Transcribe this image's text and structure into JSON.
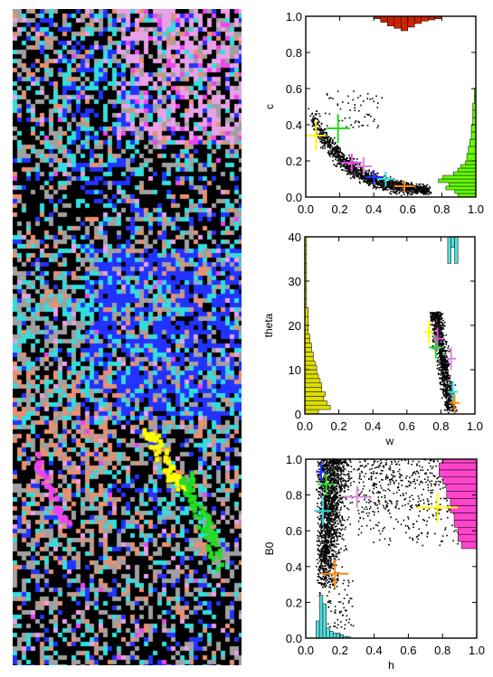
{
  "colors": {
    "cluster_yellow": "#ffff00",
    "cluster_green": "#22dd22",
    "cluster_magenta": "#ee44ee",
    "cluster_pink": "#dd88dd",
    "cluster_blue": "#2233ff",
    "cluster_cyan": "#33dddd",
    "cluster_orange": "#ff8800",
    "hist_red": "#cc2200",
    "hist_green": "#66ff00",
    "hist_yellow": "#dddd00",
    "hist_cyan": "#55dddd",
    "hist_magenta": "#ff44cc",
    "map_gray": "#a0a0a0",
    "map_light_pink": "#e8a0e8",
    "map_salmon": "#e89070"
  },
  "classification_map": {
    "type": "cluster-label image",
    "classes": [
      "black",
      "gray",
      "blue",
      "cyan",
      "magenta",
      "light-pink",
      "salmon",
      "yellow",
      "green"
    ]
  },
  "panel_tags": {
    "p1": "",
    "p2": "",
    "p3": ""
  },
  "chart_data": [
    {
      "type": "scatter",
      "title": "",
      "xlabel": "",
      "ylabel": "c",
      "xlim": [
        0,
        1
      ],
      "ylim": [
        0,
        1
      ],
      "xticks": [
        "0.0",
        "0.2",
        "0.4",
        "0.6",
        "0.8",
        "1.0"
      ],
      "yticks": [
        "0.0",
        "0.2",
        "0.4",
        "0.6",
        "0.8",
        "1.0"
      ],
      "scatter_cloud": {
        "description": "dense band descending from upper-left to lower-right",
        "main_band": [
          [
            0.05,
            0.42
          ],
          [
            0.15,
            0.35
          ],
          [
            0.25,
            0.25
          ],
          [
            0.4,
            0.15
          ],
          [
            0.55,
            0.08
          ],
          [
            0.7,
            0.02
          ]
        ],
        "n_points": 1400
      },
      "crosses": [
        {
          "color": "cluster_yellow",
          "x": 0.06,
          "y": 0.34,
          "dx": 0.06,
          "dy": 0.08
        },
        {
          "color": "cluster_green",
          "x": 0.19,
          "y": 0.38,
          "dx": 0.07,
          "dy": 0.08
        },
        {
          "color": "cluster_magenta",
          "x": 0.27,
          "y": 0.19,
          "dx": 0.06,
          "dy": 0.05
        },
        {
          "color": "cluster_pink",
          "x": 0.34,
          "y": 0.17,
          "dx": 0.05,
          "dy": 0.05
        },
        {
          "color": "cluster_blue",
          "x": 0.4,
          "y": 0.11,
          "dx": 0.05,
          "dy": 0.04
        },
        {
          "color": "cluster_cyan",
          "x": 0.47,
          "y": 0.1,
          "dx": 0.05,
          "dy": 0.04
        },
        {
          "color": "cluster_orange",
          "x": 0.58,
          "y": 0.06,
          "dx": 0.06,
          "dy": 0.03
        }
      ],
      "hist_top": {
        "color": "hist_red",
        "bins_x": [
          0.4,
          0.44,
          0.48,
          0.52,
          0.56,
          0.6,
          0.64,
          0.68,
          0.72,
          0.76,
          0.8
        ],
        "values": [
          0.02,
          0.05,
          0.08,
          0.1,
          0.12,
          0.09,
          0.06,
          0.04,
          0.03,
          0.02
        ]
      },
      "hist_right": {
        "color": "hist_green",
        "bins_y": [
          0.0,
          0.02,
          0.04,
          0.06,
          0.08,
          0.1,
          0.12,
          0.14,
          0.16,
          0.18,
          0.2,
          0.24,
          0.28,
          0.32,
          0.36,
          0.4,
          0.44,
          0.48,
          0.52,
          0.56,
          0.6
        ],
        "values": [
          0.12,
          0.14,
          0.2,
          0.18,
          0.25,
          0.22,
          0.15,
          0.12,
          0.1,
          0.07,
          0.06,
          0.05,
          0.04,
          0.03,
          0.03,
          0.02,
          0.02,
          0.02,
          0.01,
          0.01
        ]
      }
    },
    {
      "type": "scatter",
      "title": "",
      "xlabel": "w",
      "ylabel": "theta",
      "xlim": [
        0,
        1
      ],
      "ylim": [
        0,
        40
      ],
      "xticks": [
        "0.0",
        "0.2",
        "0.4",
        "0.6",
        "0.8",
        "1.0"
      ],
      "yticks": [
        "0",
        "10",
        "20",
        "30",
        "40"
      ],
      "scatter_cloud": {
        "description": "narrow vertical cluster near w = 0.8",
        "x_range": [
          0.7,
          0.9
        ],
        "y_range": [
          0,
          24
        ],
        "n_points": 900
      },
      "crosses": [
        {
          "color": "cluster_yellow",
          "x": 0.73,
          "y": 18.5,
          "dx": 0.03,
          "dy": 2.5
        },
        {
          "color": "cluster_magenta",
          "x": 0.78,
          "y": 17,
          "dx": 0.03,
          "dy": 2.5
        },
        {
          "color": "cluster_green",
          "x": 0.77,
          "y": 15,
          "dx": 0.04,
          "dy": 2.5
        },
        {
          "color": "cluster_pink",
          "x": 0.86,
          "y": 12.5,
          "dx": 0.03,
          "dy": 2.5
        },
        {
          "color": "cluster_cyan",
          "x": 0.87,
          "y": 5,
          "dx": 0.03,
          "dy": 2.5
        },
        {
          "color": "cluster_orange",
          "x": 0.88,
          "y": 2.5,
          "dx": 0.03,
          "dy": 2
        }
      ],
      "hist_left": {
        "color": "hist_yellow",
        "bins_y": [
          0,
          1,
          2,
          3,
          4,
          5,
          6,
          7,
          8,
          9,
          10,
          11,
          12,
          13,
          14,
          15,
          16,
          17,
          18,
          19,
          20,
          22,
          24,
          26,
          28,
          30,
          32,
          34,
          36,
          38,
          40
        ],
        "values": [
          0.08,
          0.15,
          0.13,
          0.11,
          0.12,
          0.1,
          0.1,
          0.09,
          0.08,
          0.07,
          0.07,
          0.06,
          0.05,
          0.05,
          0.04,
          0.04,
          0.03,
          0.03,
          0.02,
          0.02,
          0.02,
          0.02,
          0.01,
          0.01,
          0.01,
          0.01,
          0.01,
          0.01,
          0.01,
          0.01
        ]
      },
      "hist_top": {
        "color": "hist_cyan",
        "bins_x": [
          0.84,
          0.86,
          0.88,
          0.9
        ],
        "values": [
          10,
          4,
          10
        ]
      }
    },
    {
      "type": "scatter",
      "title": "",
      "xlabel": "h",
      "ylabel": "B0",
      "xlim": [
        0,
        1
      ],
      "ylim": [
        0,
        1
      ],
      "xticks": [
        "0.0",
        "0.2",
        "0.4",
        "0.6",
        "0.8",
        "1.0"
      ],
      "yticks": [
        "0.0",
        "0.2",
        "0.4",
        "0.6",
        "0.8",
        "1.0"
      ],
      "scatter_cloud": {
        "description": "dense region at small h extending upward, sparse points across upper area",
        "dense_x": [
          0.05,
          0.35
        ],
        "dense_y": [
          0.3,
          1.0
        ],
        "sparse_x": [
          0.35,
          1.0
        ],
        "sparse_y": [
          0.5,
          1.0
        ],
        "n_points": 2200
      },
      "crosses": [
        {
          "color": "cluster_blue",
          "x": 0.09,
          "y": 0.93,
          "dx": 0.03,
          "dy": 0.05
        },
        {
          "color": "cluster_green",
          "x": 0.12,
          "y": 0.86,
          "dx": 0.05,
          "dy": 0.06
        },
        {
          "color": "cluster_pink",
          "x": 0.3,
          "y": 0.79,
          "dx": 0.08,
          "dy": 0.06
        },
        {
          "color": "cluster_cyan",
          "x": 0.1,
          "y": 0.71,
          "dx": 0.05,
          "dy": 0.08
        },
        {
          "color": "cluster_yellow",
          "x": 0.77,
          "y": 0.73,
          "dx": 0.12,
          "dy": 0.08
        },
        {
          "color": "cluster_orange",
          "x": 0.17,
          "y": 0.36,
          "dx": 0.08,
          "dy": 0.08
        }
      ],
      "hist_bottom": {
        "color": "hist_cyan",
        "bins_x": [
          0.06,
          0.08,
          0.1,
          0.12,
          0.14,
          0.16,
          0.18,
          0.2,
          0.22,
          0.24,
          0.26
        ],
        "values": [
          0.1,
          0.25,
          0.2,
          0.06,
          0.04,
          0.03,
          0.03,
          0.02,
          0.01,
          0.01
        ]
      },
      "hist_right": {
        "color": "hist_magenta",
        "bins_y": [
          0.5,
          0.54,
          0.58,
          0.62,
          0.66,
          0.7,
          0.74,
          0.78,
          0.82,
          0.86,
          0.9,
          0.94,
          0.98,
          1.0
        ],
        "values": [
          0.04,
          0.05,
          0.05,
          0.06,
          0.06,
          0.07,
          0.07,
          0.08,
          0.08,
          0.09,
          0.1,
          0.1,
          0.09
        ]
      }
    }
  ]
}
